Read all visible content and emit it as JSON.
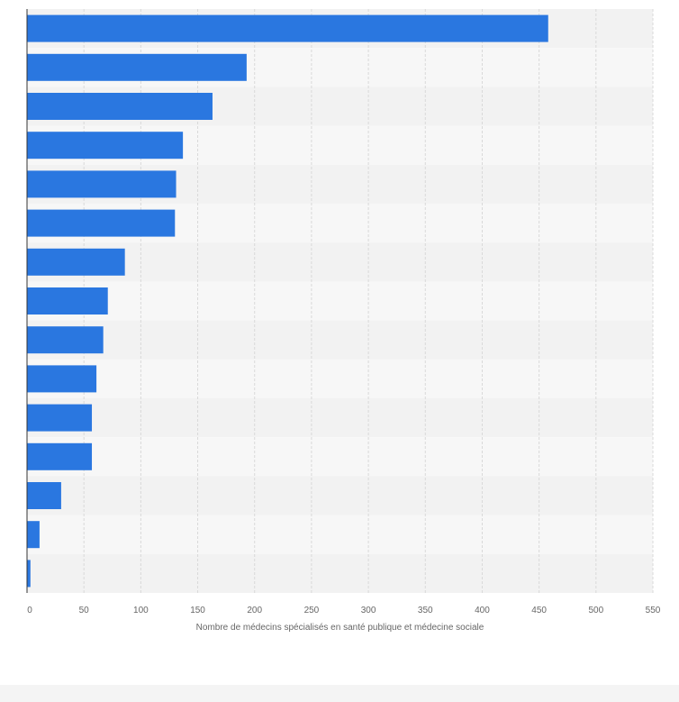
{
  "chart_data": {
    "type": "bar",
    "orientation": "horizontal",
    "title": "",
    "xlabel": "Nombre de médecins spécialisés en santé publique et médecine sociale",
    "ylabel": "",
    "categories": [
      "",
      "",
      "",
      "",
      "",
      "",
      "",
      "",
      "",
      "",
      "",
      "",
      "",
      "",
      ""
    ],
    "values": [
      458,
      193,
      163,
      137,
      131,
      130,
      86,
      71,
      67,
      61,
      57,
      57,
      30,
      11,
      3
    ],
    "xlim": [
      0,
      550
    ],
    "xticks": [
      0,
      50,
      100,
      150,
      200,
      250,
      300,
      350,
      400,
      450,
      500,
      550
    ],
    "grid": true,
    "bar_color": "#2a77e0",
    "band_colors": [
      "#f2f2f2",
      "#f7f7f7"
    ]
  }
}
